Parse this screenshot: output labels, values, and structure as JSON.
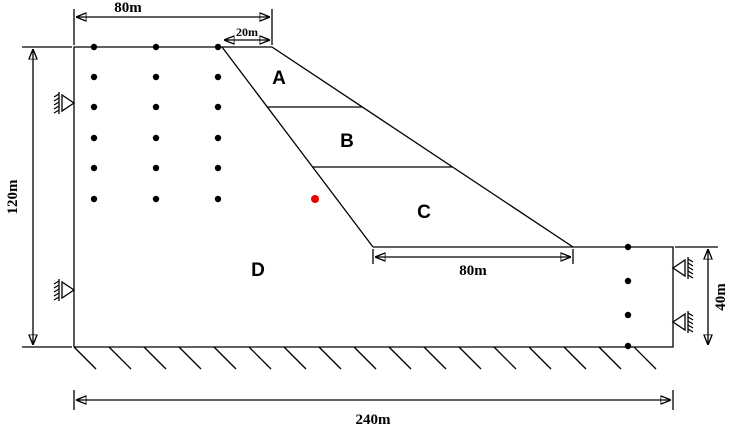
{
  "dimensions": {
    "top_width": "80m",
    "crest_width": "20m",
    "height": "120m",
    "right_height": "40m",
    "toe_width": "80m",
    "total_width": "240m"
  },
  "zones": [
    "A",
    "B",
    "C",
    "D"
  ]
}
